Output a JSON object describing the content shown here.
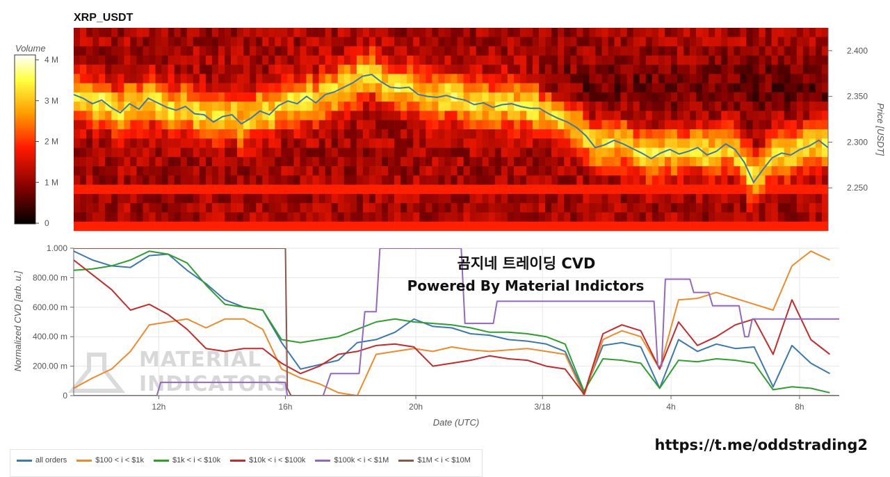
{
  "chart_data": [
    {
      "type": "heatmap",
      "title": "XRP_USDT",
      "colorbar": {
        "label": "Volume",
        "ticks": [
          "4 M",
          "3 M",
          "2 M",
          "1 M",
          "0"
        ],
        "range": [
          0,
          4200000
        ],
        "colors": [
          "#000000",
          "#7a0000",
          "#ff1a00",
          "#ff9a00",
          "#ffff40",
          "#ffffff"
        ]
      },
      "y_axis": {
        "label": "Price [USDT]",
        "ticks": [
          "2.400",
          "2.350",
          "2.300",
          "2.250"
        ],
        "range": [
          2.203,
          2.425
        ]
      },
      "price_line": {
        "color": "#3a78b0",
        "x_hours": [
          0,
          0.5,
          1,
          1.5,
          2,
          2.5,
          3,
          3.5,
          4,
          4.5,
          5,
          5.5,
          6,
          6.5,
          7,
          7.5,
          8,
          8.5,
          9,
          9.5,
          10,
          10.5,
          11,
          11.5,
          12,
          12.5,
          13,
          13.5,
          14,
          14.5,
          15,
          15.5,
          16,
          16.5,
          17,
          17.5,
          18,
          18.5,
          19,
          19.5,
          20,
          20.5,
          21,
          21.5,
          22,
          22.5,
          23,
          23.5,
          24,
          24.5,
          25,
          25.5,
          26,
          26.5,
          27,
          27.5,
          28,
          28.5,
          29,
          29.5,
          30,
          30.5,
          31,
          31.5,
          32,
          32.5,
          33,
          33.5,
          34,
          34.5,
          35,
          35.5,
          36,
          36.5,
          37,
          37.5,
          38,
          38.5,
          39,
          39.5,
          40,
          40.5
        ],
        "prices": [
          2.352,
          2.348,
          2.342,
          2.346,
          2.338,
          2.332,
          2.342,
          2.336,
          2.348,
          2.343,
          2.338,
          2.335,
          2.339,
          2.331,
          2.33,
          2.322,
          2.328,
          2.33,
          2.32,
          2.326,
          2.334,
          2.33,
          2.34,
          2.345,
          2.342,
          2.35,
          2.343,
          2.352,
          2.355,
          2.36,
          2.365,
          2.372,
          2.374,
          2.366,
          2.36,
          2.359,
          2.36,
          2.352,
          2.35,
          2.349,
          2.351,
          2.348,
          2.346,
          2.341,
          2.343,
          2.338,
          2.341,
          2.342,
          2.339,
          2.337,
          2.337,
          2.331,
          2.326,
          2.322,
          2.316,
          2.307,
          2.294,
          2.297,
          2.302,
          2.298,
          2.293,
          2.288,
          2.282,
          2.288,
          2.292,
          2.287,
          2.29,
          2.294,
          2.286,
          2.29,
          2.298,
          2.292,
          2.278,
          2.256,
          2.27,
          2.283,
          2.288,
          2.286,
          2.292,
          2.296,
          2.302,
          2.294
        ]
      }
    },
    {
      "type": "line",
      "overlay_title": "곰지네 트레이딩 CVD",
      "overlay_subtitle": "Powered By Material Indictors",
      "watermark": [
        "MATERIAL",
        "INDICATORS"
      ],
      "xlabel": "Date (UTC)",
      "ylabel": "Normalized CVD [arb. u.]",
      "x_ticks": [
        {
          "label": "12h",
          "hour": 4.5
        },
        {
          "label": "16h",
          "hour": 11.2
        },
        {
          "label": "20h",
          "hour": 18.1
        },
        {
          "label": "3/18",
          "hour": 24.8
        },
        {
          "label": "4h",
          "hour": 31.6
        },
        {
          "label": "8h",
          "hour": 38.4
        }
      ],
      "y_ticks": [
        "0",
        "200.00 m",
        "400.00 m",
        "600.00 m",
        "800.00 m",
        "1.000"
      ],
      "ylim": [
        0,
        1
      ],
      "x_hours": [
        0,
        1,
        2,
        3,
        4,
        5,
        6,
        7,
        8,
        9,
        10,
        11,
        12,
        13,
        14,
        15,
        16,
        17,
        18,
        19,
        20,
        21,
        22,
        23,
        24,
        25,
        26,
        27,
        28,
        29,
        30,
        31,
        32,
        33,
        34,
        35,
        36,
        37,
        38,
        39,
        40
      ],
      "series": [
        {
          "name": "all orders",
          "color": "#3a78b0",
          "values": [
            0.98,
            0.92,
            0.88,
            0.87,
            0.95,
            0.96,
            0.85,
            0.76,
            0.65,
            0.6,
            0.58,
            0.36,
            0.18,
            0.21,
            0.24,
            0.36,
            0.38,
            0.43,
            0.52,
            0.47,
            0.46,
            0.42,
            0.41,
            0.38,
            0.37,
            0.35,
            0.3,
            0.02,
            0.34,
            0.36,
            0.33,
            0.05,
            0.38,
            0.3,
            0.35,
            0.32,
            0.33,
            0.06,
            0.34,
            0.22,
            0.15
          ]
        },
        {
          "name": "$100 < i < $1k",
          "color": "#f08a28",
          "values": [
            0.05,
            0.12,
            0.18,
            0.3,
            0.48,
            0.5,
            0.52,
            0.46,
            0.52,
            0.52,
            0.45,
            0.18,
            0.12,
            0.08,
            0.02,
            0.0,
            0.28,
            0.3,
            0.32,
            0.3,
            0.33,
            0.31,
            0.3,
            0.31,
            0.32,
            0.3,
            0.28,
            0.0,
            0.38,
            0.44,
            0.4,
            0.18,
            0.65,
            0.66,
            0.7,
            0.66,
            0.62,
            0.58,
            0.88,
            0.98,
            0.92
          ]
        },
        {
          "name": "$1k < i < $10k",
          "color": "#2ca02c",
          "values": [
            0.85,
            0.86,
            0.88,
            0.92,
            0.98,
            0.96,
            0.9,
            0.75,
            0.62,
            0.6,
            0.58,
            0.38,
            0.36,
            0.38,
            0.4,
            0.45,
            0.5,
            0.52,
            0.5,
            0.49,
            0.48,
            0.46,
            0.43,
            0.43,
            0.42,
            0.4,
            0.35,
            0.03,
            0.25,
            0.24,
            0.22,
            0.05,
            0.24,
            0.23,
            0.25,
            0.24,
            0.22,
            0.04,
            0.06,
            0.05,
            0.02
          ]
        },
        {
          "name": "$10k < i < $100k",
          "color": "#c7292a",
          "values": [
            0.92,
            0.82,
            0.72,
            0.58,
            0.62,
            0.55,
            0.45,
            0.32,
            0.3,
            0.32,
            0.32,
            0.22,
            0.15,
            0.2,
            0.28,
            0.3,
            0.34,
            0.35,
            0.33,
            0.2,
            0.22,
            0.24,
            0.27,
            0.25,
            0.24,
            0.2,
            0.18,
            0.01,
            0.42,
            0.48,
            0.44,
            0.18,
            0.5,
            0.34,
            0.4,
            0.48,
            0.52,
            0.28,
            0.65,
            0.38,
            0.28
          ]
        },
        {
          "name": "$100k < i < $1M",
          "color": "#9467bd",
          "steps": [
            [
              0,
              0
            ],
            [
              4.4,
              0
            ],
            [
              4.6,
              0.09
            ],
            [
              11.2,
              0.09
            ],
            [
              11.3,
              0
            ],
            [
              13.2,
              0
            ],
            [
              13.6,
              0.15
            ],
            [
              15.1,
              0.15
            ],
            [
              15.4,
              0.57
            ],
            [
              16.0,
              0.57
            ],
            [
              16.2,
              1.0
            ],
            [
              20.5,
              1.0
            ],
            [
              20.7,
              0.49
            ],
            [
              22.2,
              0.49
            ],
            [
              22.4,
              0.64
            ],
            [
              30.7,
              0.64
            ],
            [
              30.9,
              0.2
            ],
            [
              31.1,
              0.2
            ],
            [
              31.3,
              0.79
            ],
            [
              32.6,
              0.79
            ],
            [
              32.8,
              0.7
            ],
            [
              33.6,
              0.7
            ],
            [
              33.8,
              0.61
            ],
            [
              35.2,
              0.61
            ],
            [
              35.5,
              0.4
            ],
            [
              35.7,
              0.4
            ],
            [
              35.9,
              0.52
            ],
            [
              40.5,
              0.52
            ]
          ]
        },
        {
          "name": "$1M < i < $10M",
          "color": "#8c564b",
          "steps": [
            [
              0,
              1.0
            ],
            [
              11.2,
              1.0
            ],
            [
              11.3,
              0.05
            ],
            [
              11.5,
              0
            ],
            [
              40.5,
              0
            ]
          ]
        }
      ]
    }
  ],
  "footer": {
    "link": "https://t.me/oddstrading2"
  }
}
